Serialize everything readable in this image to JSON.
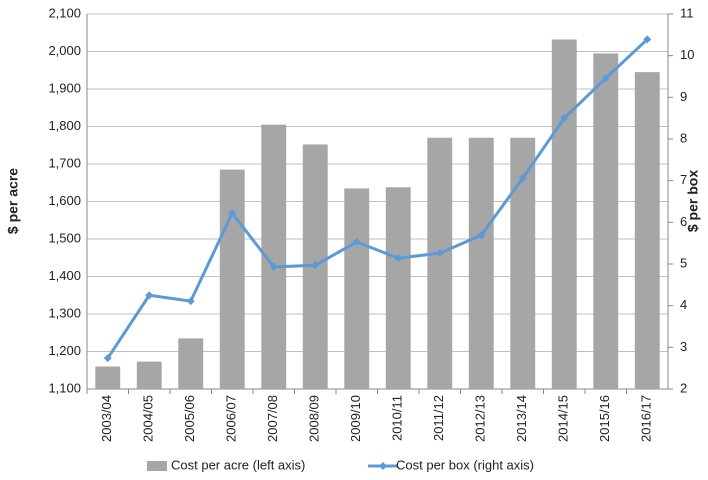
{
  "chart_data": {
    "type": "bar",
    "categories": [
      "2003/04",
      "2004/05",
      "2005/06",
      "2006/07",
      "2007/08",
      "2008/09",
      "2009/10",
      "2010/11",
      "2011/12",
      "2012/13",
      "2013/14",
      "2014/15",
      "2015/16",
      "2016/17"
    ],
    "series": [
      {
        "name": "Cost per acre (left axis)",
        "type": "bar",
        "color": "#a6a6a6",
        "values": [
          1160,
          1173,
          1235,
          1685,
          1805,
          1752,
          1635,
          1638,
          1770,
          1770,
          1770,
          2032,
          1995,
          1945
        ]
      },
      {
        "name": "Cost per box (right axis)",
        "type": "line",
        "axis": "y2",
        "color": "#5b9bd5",
        "values": [
          2.74,
          4.25,
          4.11,
          6.22,
          4.93,
          4.97,
          5.53,
          5.14,
          5.26,
          5.69,
          7.06,
          8.5,
          9.46,
          10.39
        ]
      }
    ],
    "ylabel": "$ per acre",
    "y2label": "$ per box",
    "ylim": [
      1100,
      2100
    ],
    "yticks": [
      {
        "value": 1100,
        "label": "1,100"
      },
      {
        "value": 1200,
        "label": "1,200"
      },
      {
        "value": 1300,
        "label": "1,300"
      },
      {
        "value": 1400,
        "label": "1,400"
      },
      {
        "value": 1500,
        "label": "1,500"
      },
      {
        "value": 1600,
        "label": "1,600"
      },
      {
        "value": 1700,
        "label": "1,700"
      },
      {
        "value": 1800,
        "label": "1,800"
      },
      {
        "value": 1900,
        "label": "1,900"
      },
      {
        "value": 2000,
        "label": "2,000"
      },
      {
        "value": 2100,
        "label": "2,100"
      }
    ],
    "y2lim": [
      2,
      11
    ],
    "y2ticks": [
      2,
      3,
      4,
      5,
      6,
      7,
      8,
      9,
      10,
      11
    ],
    "grid": true,
    "legend": "bottom"
  }
}
